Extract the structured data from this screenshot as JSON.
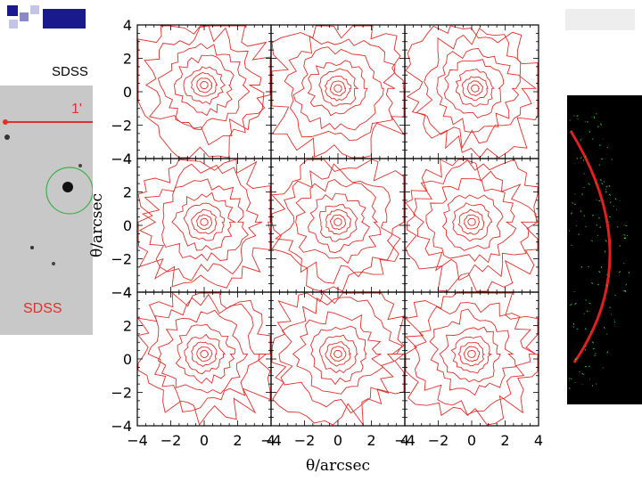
{
  "slide": {
    "sdss_top_label": "SDSS",
    "sdss_bottom_label": "SDSS",
    "scale_label": "1'"
  },
  "colors": {
    "contour": "#e0302a",
    "frame": "#000000",
    "logo_blue": "#1a1a8c",
    "green_points": "#38d838"
  },
  "chart_data": {
    "type": "contour-grid",
    "rows": 3,
    "cols": 3,
    "xlabel": "θ/arcsec",
    "ylabel": "θ/arcsec",
    "xlim": [
      -4,
      4
    ],
    "ylim": [
      -4,
      4
    ],
    "x_ticks": [
      "−4",
      "−2",
      "0",
      "2",
      "4"
    ],
    "y_ticks": [
      "4",
      "2",
      "0",
      "−2",
      "−4"
    ],
    "contour_levels": 8,
    "panels": [
      {
        "row": 0,
        "col": 0,
        "center": [
          0,
          0.4
        ]
      },
      {
        "row": 0,
        "col": 1,
        "center": [
          0,
          0.2
        ]
      },
      {
        "row": 0,
        "col": 2,
        "center": [
          0.2,
          0.2
        ]
      },
      {
        "row": 1,
        "col": 0,
        "center": [
          0,
          0.2
        ]
      },
      {
        "row": 1,
        "col": 1,
        "center": [
          0,
          0.2
        ]
      },
      {
        "row": 1,
        "col": 2,
        "center": [
          0,
          0.2
        ]
      },
      {
        "row": 2,
        "col": 0,
        "center": [
          0,
          0.3
        ]
      },
      {
        "row": 2,
        "col": 1,
        "center": [
          0,
          0.3
        ]
      },
      {
        "row": 2,
        "col": 2,
        "center": [
          0,
          0.3
        ]
      }
    ]
  }
}
